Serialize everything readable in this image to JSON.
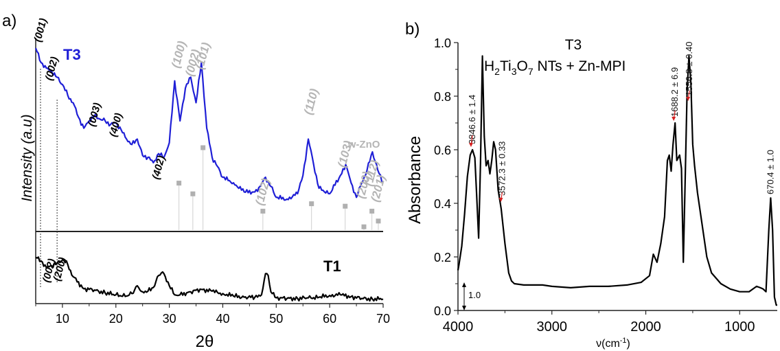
{
  "chart_data": [
    {
      "panel": "a)",
      "type": "line",
      "xlabel": "2θ",
      "ylabel": "Intensity (a.u)",
      "xlim": [
        5,
        70
      ],
      "xticks": [
        "10",
        "20",
        "30",
        "40",
        "50",
        "60",
        "70"
      ],
      "grid": false,
      "series": [
        {
          "name": "T3",
          "color": "#1f1fd6",
          "x": [
            5,
            6,
            7,
            8,
            9,
            10,
            11,
            12,
            13,
            14,
            15,
            16,
            17,
            18,
            19,
            20,
            21,
            22,
            23,
            24,
            25,
            26,
            27,
            28,
            29,
            30,
            31,
            32,
            33,
            34,
            35,
            36,
            37,
            38,
            39,
            40,
            42,
            44,
            46,
            47,
            48,
            49,
            50,
            52,
            54,
            55,
            56,
            57,
            58,
            60,
            62,
            63,
            64,
            65,
            66,
            67,
            68,
            69,
            70
          ],
          "y": [
            1.0,
            0.92,
            0.89,
            0.87,
            0.84,
            0.8,
            0.74,
            0.7,
            0.62,
            0.56,
            0.6,
            0.63,
            0.61,
            0.6,
            0.58,
            0.59,
            0.55,
            0.5,
            0.47,
            0.5,
            0.41,
            0.4,
            0.37,
            0.42,
            0.4,
            0.48,
            0.82,
            0.6,
            0.78,
            0.84,
            0.7,
            0.92,
            0.56,
            0.4,
            0.35,
            0.29,
            0.26,
            0.21,
            0.21,
            0.24,
            0.29,
            0.24,
            0.18,
            0.17,
            0.2,
            0.3,
            0.5,
            0.36,
            0.23,
            0.2,
            0.3,
            0.36,
            0.26,
            0.18,
            0.26,
            0.33,
            0.43,
            0.33,
            0.26
          ]
        },
        {
          "name": "T1",
          "color": "#000000",
          "x": [
            5,
            6,
            7,
            8,
            9,
            10,
            11,
            12,
            14,
            16,
            18,
            20,
            22,
            23,
            23.5,
            24,
            24.5,
            25,
            26,
            27,
            28,
            28.5,
            29,
            30,
            31,
            32,
            34,
            36,
            38,
            40,
            42,
            44,
            46,
            47,
            47.5,
            48,
            48.5,
            49,
            50,
            52,
            54,
            56,
            58,
            60,
            62,
            64,
            66,
            68,
            70
          ],
          "y": [
            0.72,
            0.66,
            0.55,
            0.58,
            0.62,
            0.68,
            0.6,
            0.4,
            0.2,
            0.18,
            0.13,
            0.1,
            0.08,
            0.12,
            0.18,
            0.25,
            0.18,
            0.15,
            0.16,
            0.22,
            0.42,
            0.46,
            0.45,
            0.25,
            0.1,
            0.1,
            0.15,
            0.19,
            0.16,
            0.12,
            0.08,
            0.06,
            0.06,
            0.08,
            0.2,
            0.45,
            0.42,
            0.15,
            0.05,
            0.04,
            0.04,
            0.05,
            0.06,
            0.09,
            0.1,
            0.07,
            0.04,
            0.03,
            0.03
          ]
        }
      ],
      "annotations": [
        {
          "text": "(001)",
          "x": 5.9,
          "style": "black-italic-bold"
        },
        {
          "text": "(002)",
          "x": 8.0,
          "style": "black-italic-bold"
        },
        {
          "text": "(003)",
          "x": 16.0,
          "style": "black-italic-bold"
        },
        {
          "text": "(400)",
          "x": 20.0,
          "style": "black-italic-bold"
        },
        {
          "text": "(402)",
          "x": 28.0,
          "style": "black-italic-bold"
        },
        {
          "text": "(002)",
          "x": 7.5,
          "style": "black-italic-bold"
        },
        {
          "text": "(200)",
          "x": 9.5,
          "style": "black-italic-bold"
        },
        {
          "text": "(100)",
          "x": 31.8,
          "style": "gray-italic-bold"
        },
        {
          "text": "(002)",
          "x": 34.4,
          "style": "gray-italic-bold"
        },
        {
          "text": "(101)",
          "x": 36.3,
          "style": "gray-italic-bold"
        },
        {
          "text": "(102)",
          "x": 47.5,
          "style": "gray-italic-bold"
        },
        {
          "text": "(110)",
          "x": 56.6,
          "style": "gray-italic-bold"
        },
        {
          "text": "(103)",
          "x": 62.9,
          "style": "gray-italic-bold"
        },
        {
          "text": "(200)",
          "x": 66.4,
          "style": "gray-italic-bold"
        },
        {
          "text": "(112)",
          "x": 67.9,
          "style": "gray-italic-bold"
        },
        {
          "text": "(201)",
          "x": 69.1,
          "style": "gray-italic-bold"
        },
        {
          "text": "w-ZnO",
          "x": 66.5,
          "style": "gray-bold"
        }
      ],
      "reference_peaks": {
        "name": "w-ZnO",
        "color": "#b0b0b0",
        "x": [
          31.8,
          34.4,
          36.3,
          47.5,
          56.6,
          62.9,
          66.4,
          67.9,
          69.1
        ],
        "relative_intensity": [
          0.57,
          0.44,
          1.0,
          0.23,
          0.32,
          0.29,
          0.04,
          0.23,
          0.11
        ]
      },
      "reference_lines": [
        {
          "x": 5.9,
          "style": "dashed"
        },
        {
          "x": 9.0,
          "style": "dashed"
        }
      ]
    },
    {
      "panel": "b)",
      "type": "line",
      "title": "T3",
      "subtitle": "H2Ti3O7 NTs + Zn-MPI",
      "xlabel": "ν(cm⁻¹)",
      "ylabel": "Absorbance",
      "xlim": [
        4000,
        600
      ],
      "ylim": [
        0.0,
        1.0
      ],
      "xticks": [
        "4000",
        "3000",
        "2000",
        "1000"
      ],
      "yticks": [
        "0.0",
        "0.2",
        "0.4",
        "0.6",
        "0.8",
        "1.0"
      ],
      "scale_bar_label": "1.0",
      "grid": false,
      "series": [
        {
          "name": "T3",
          "color": "#000000",
          "x": [
            4000,
            3990,
            3960,
            3930,
            3900,
            3870,
            3846,
            3820,
            3800,
            3780,
            3760,
            3740,
            3720,
            3700,
            3680,
            3660,
            3640,
            3620,
            3600,
            3572,
            3540,
            3500,
            3460,
            3430,
            3400,
            3300,
            3100,
            3000,
            2800,
            2600,
            2400,
            2200,
            2050,
            1960,
            1920,
            1880,
            1840,
            1800,
            1770,
            1750,
            1730,
            1710,
            1688,
            1670,
            1640,
            1620,
            1600,
            1580,
            1560,
            1540,
            1520,
            1500,
            1480,
            1450,
            1400,
            1350,
            1300,
            1200,
            1100,
            1000,
            900,
            820,
            780,
            750,
            720,
            690,
            670,
            650,
            630,
            610,
            600
          ],
          "y": [
            0.15,
            0.17,
            0.24,
            0.36,
            0.5,
            0.58,
            0.6,
            0.57,
            0.42,
            0.27,
            0.55,
            0.95,
            0.65,
            0.54,
            0.56,
            0.51,
            0.56,
            0.63,
            0.6,
            0.45,
            0.38,
            0.25,
            0.14,
            0.11,
            0.1,
            0.095,
            0.095,
            0.09,
            0.085,
            0.09,
            0.09,
            0.095,
            0.105,
            0.13,
            0.21,
            0.18,
            0.25,
            0.35,
            0.56,
            0.58,
            0.52,
            0.62,
            0.7,
            0.56,
            0.58,
            0.53,
            0.18,
            0.5,
            0.82,
            0.95,
            0.85,
            0.62,
            0.54,
            0.44,
            0.32,
            0.2,
            0.14,
            0.1,
            0.08,
            0.07,
            0.07,
            0.09,
            0.085,
            0.08,
            0.07,
            0.3,
            0.42,
            0.3,
            0.05,
            0.02,
            0.02
          ]
        }
      ],
      "annotations": [
        {
          "text": "3846.6 ± 1.4",
          "x": 3846.6,
          "y": 0.6
        },
        {
          "text": "3572.3 ± 0.33",
          "x": 3572.3,
          "y": 0.45
        },
        {
          "text": "1688.2 ± 6.9",
          "x": 1688.2,
          "y": 0.7
        },
        {
          "text": "1556.8 ± 0.40",
          "x": 1556.8,
          "y": 0.82
        },
        {
          "text": "670.4 ± 1.0",
          "x": 670.4,
          "y": 0.42
        }
      ]
    }
  ],
  "labels": {
    "panel_a": "a)",
    "panel_b": "b)",
    "a_T3_label": "T3",
    "a_T1_label": "T1",
    "a_xlabel": "2θ",
    "a_ylabel": "Intensity (a.u)",
    "b_title": "T3",
    "b_subtitle_parts": [
      "H",
      "2",
      "Ti",
      "3",
      "O",
      "7",
      " NTs + Zn-MPI"
    ],
    "b_xlabel_main": "ν(cm",
    "b_xlabel_sup": "-1",
    "b_xlabel_close": ")",
    "b_ylabel": "Absorbance",
    "b_scalebar": "1.0"
  }
}
